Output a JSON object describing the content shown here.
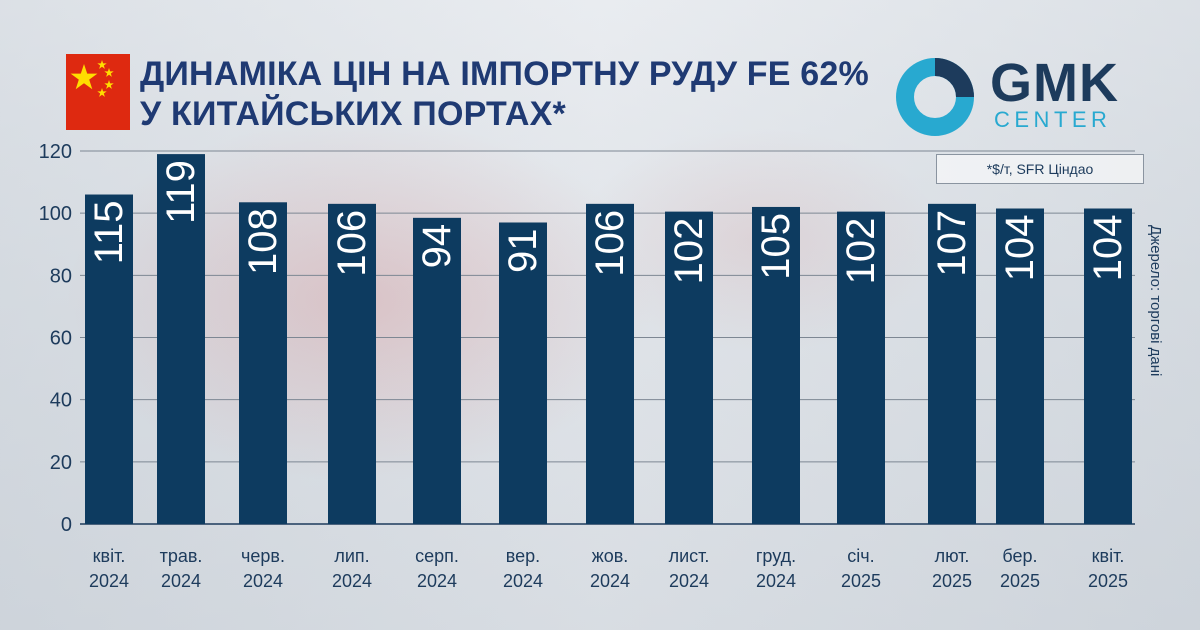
{
  "header": {
    "title": "ДИНАМІКА ЦІН НА ІМПОРТНУ РУДУ FE 62% У КИТАЙСЬКИХ ПОРТАХ*",
    "unit_note": "*$/т,  SFR Ціндао",
    "source": "Джерело: торгові дані"
  },
  "logo": {
    "main": "GMK",
    "sub": "CENTER"
  },
  "colors": {
    "bar": "#0d3b60",
    "title": "#1f3a73",
    "accent": "#28a9d0",
    "flag": "#de2910"
  },
  "chart_data": {
    "type": "bar",
    "categories": [
      [
        "квіт.",
        "2024"
      ],
      [
        "трав.",
        "2024"
      ],
      [
        "черв.",
        "2024"
      ],
      [
        "лип.",
        "2024"
      ],
      [
        "серп.",
        "2024"
      ],
      [
        "вер.",
        "2024"
      ],
      [
        "жов.",
        "2024"
      ],
      [
        "лист.",
        "2024"
      ],
      [
        "груд.",
        "2024"
      ],
      [
        "січ.",
        "2025"
      ],
      [
        "лют.",
        "2025"
      ],
      [
        "бер.",
        "2025"
      ],
      [
        "квіт.",
        "2025"
      ]
    ],
    "values": [
      115,
      119,
      108,
      106,
      94,
      91,
      106,
      102,
      105,
      102,
      107,
      104,
      104
    ],
    "bar_heights": [
      106,
      119,
      103.5,
      103,
      98.5,
      97,
      103,
      100.5,
      102,
      100.5,
      103,
      101.5,
      101.5
    ],
    "ylim": [
      0,
      120
    ],
    "yticks": [
      0,
      20,
      40,
      60,
      80,
      100,
      120
    ],
    "grid": true,
    "title": "",
    "xlabel": "",
    "ylabel": ""
  }
}
